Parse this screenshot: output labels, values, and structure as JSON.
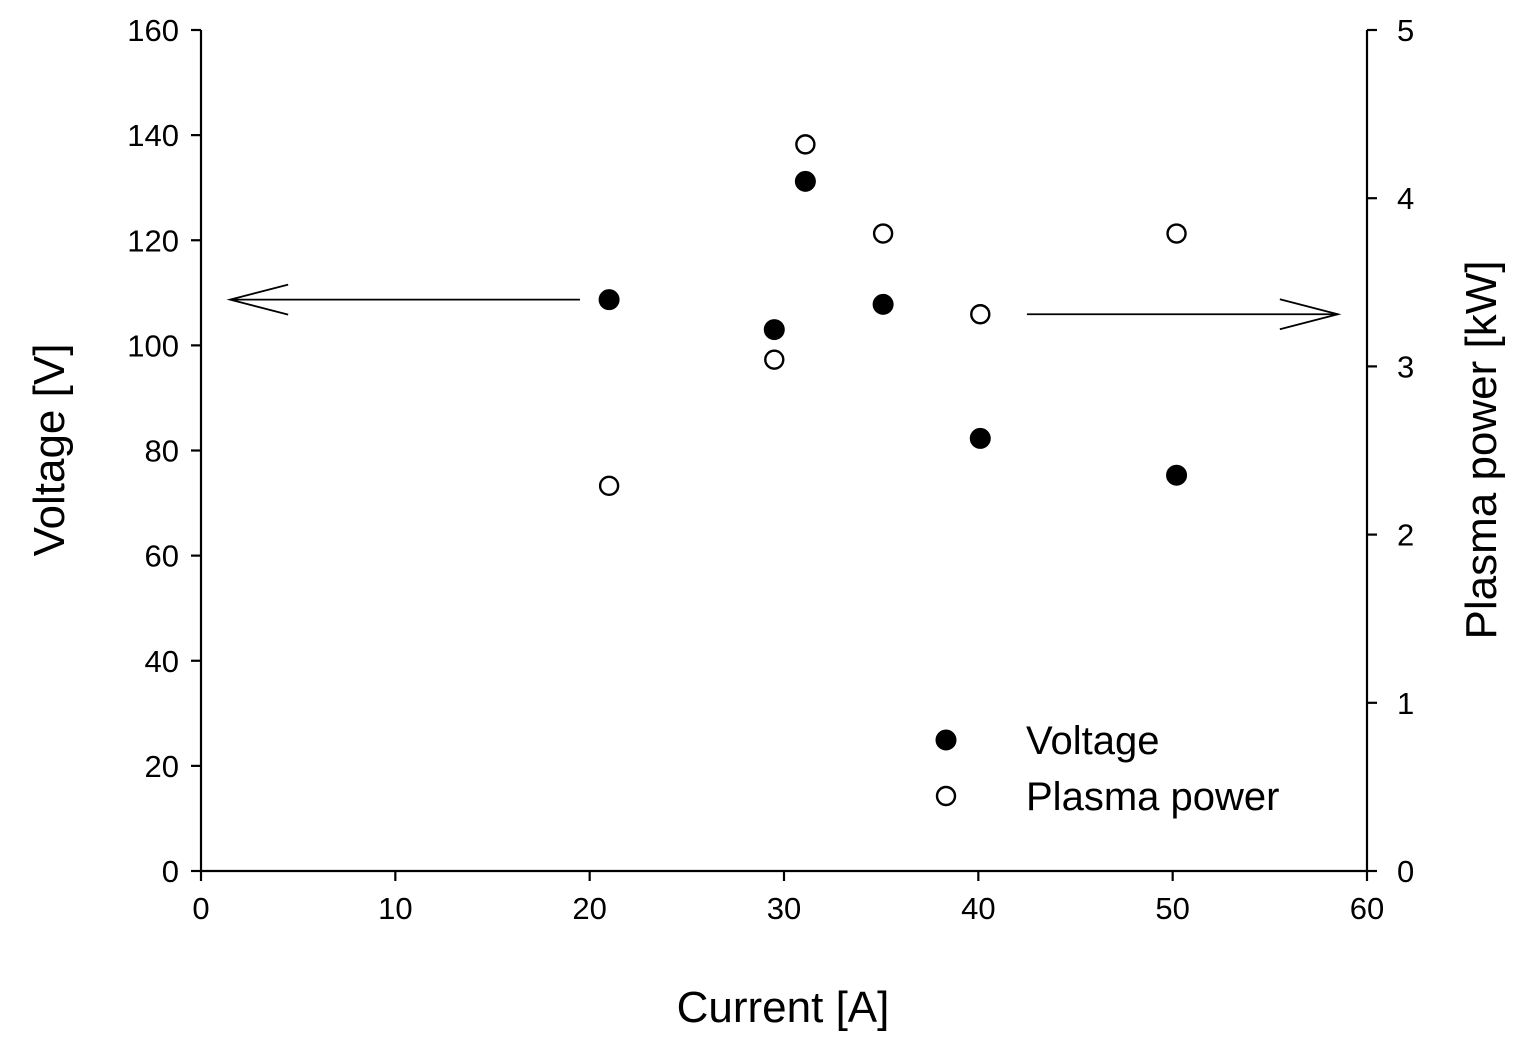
{
  "chart_data": {
    "type": "scatter",
    "title": "",
    "xlabel": "Current [A]",
    "ylabel": "Voltage [V]",
    "y2label": "Plasma power [kW]",
    "xlim": [
      0,
      60
    ],
    "ylim": [
      0,
      160
    ],
    "y2lim": [
      0,
      5
    ],
    "xticks": [
      "0",
      "10",
      "20",
      "30",
      "40",
      "50",
      "60"
    ],
    "yticks": [
      "0",
      "20",
      "40",
      "60",
      "80",
      "100",
      "120",
      "140",
      "160"
    ],
    "y2ticks": [
      "0",
      "1",
      "2",
      "3",
      "4",
      "5"
    ],
    "grid": false,
    "legend_position": "bottom-right",
    "series": [
      {
        "name": "Voltage",
        "axis": "left",
        "marker": "filled-circle",
        "x": [
          21.0,
          29.5,
          31.1,
          35.1,
          40.1,
          50.2
        ],
        "y": [
          108.7,
          103.0,
          131.2,
          107.8,
          82.3,
          75.3
        ]
      },
      {
        "name": "Plasma power",
        "axis": "right",
        "marker": "open-circle",
        "x": [
          21.0,
          29.5,
          31.1,
          35.1,
          40.1,
          50.2
        ],
        "y": [
          2.29,
          3.04,
          4.32,
          3.79,
          3.31,
          3.79
        ]
      }
    ],
    "annotations": [
      {
        "type": "arrow",
        "direction": "left",
        "meaning": "Voltage series uses left axis",
        "x_from": 19.5,
        "x_to": 1.5,
        "y_left": 108.7
      },
      {
        "type": "arrow",
        "direction": "right",
        "meaning": "Plasma power series uses right axis",
        "x_from": 42.5,
        "x_to": 58.5,
        "y_right": 3.31
      }
    ]
  }
}
